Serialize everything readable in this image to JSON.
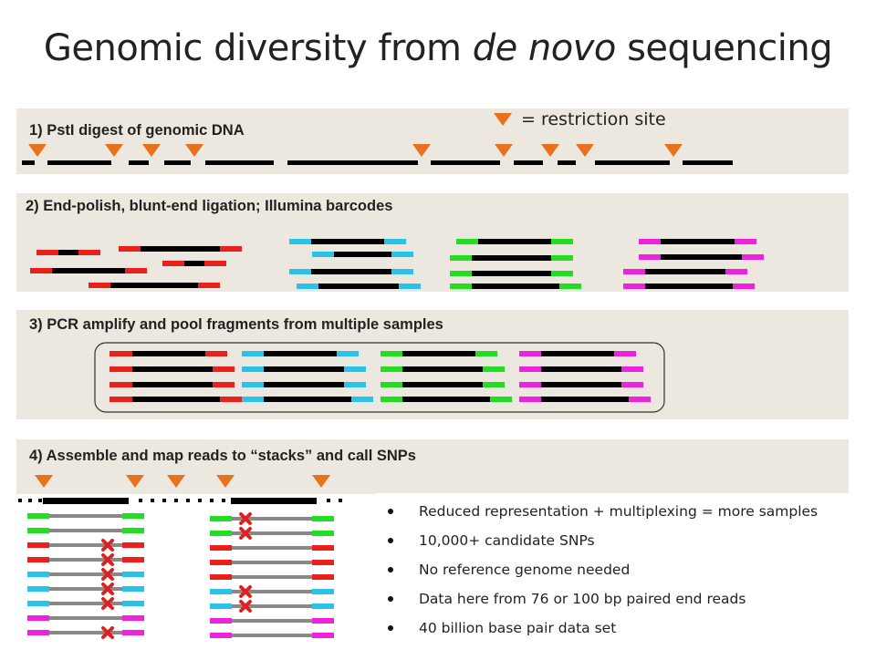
{
  "title": {
    "before": "Genomic diversity from ",
    "italic": "de novo",
    "after": " sequencing"
  },
  "legend": {
    "text": "= restriction site",
    "icon": "orange-triangle-icon"
  },
  "steps": [
    {
      "label": "1) PstI digest of genomic DNA"
    },
    {
      "label": "2) End-polish, blunt-end ligation; Illumina barcodes"
    },
    {
      "label": "3) PCR amplify and pool fragments from multiple samples"
    },
    {
      "label": "4) Assemble and map reads to “stacks” and call SNPs"
    }
  ],
  "bullets": [
    "Reduced representation  + multiplexing = more samples",
    "10,000+ candidate SNPs",
    "No reference  genome needed",
    "Data here from 76 or 100 bp paired end reads",
    "40 billion base pair data set"
  ],
  "colors": {
    "band": "#ece8df",
    "dna": "#000000",
    "restriction_site": "#e8711c",
    "barcode_red": "#e8211c",
    "barcode_cyan": "#29c3ea",
    "barcode_green": "#22dd22",
    "barcode_magenta": "#ee22dd",
    "read_gray": "#888888",
    "snp_mark": "#e02020"
  }
}
